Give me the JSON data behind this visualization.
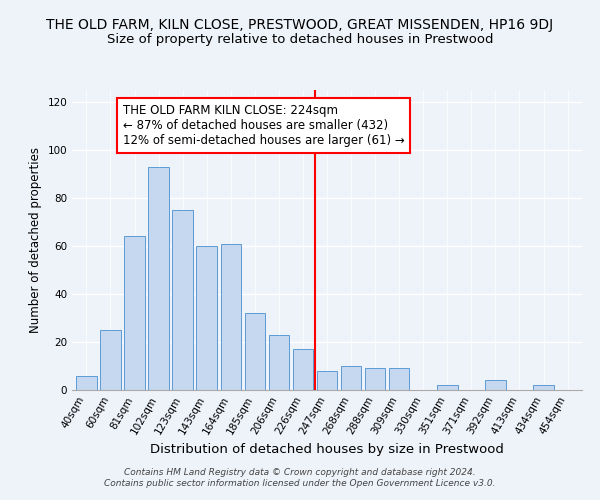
{
  "title": "THE OLD FARM, KILN CLOSE, PRESTWOOD, GREAT MISSENDEN, HP16 9DJ",
  "subtitle": "Size of property relative to detached houses in Prestwood",
  "xlabel": "Distribution of detached houses by size in Prestwood",
  "ylabel": "Number of detached properties",
  "bar_labels": [
    "40sqm",
    "60sqm",
    "81sqm",
    "102sqm",
    "123sqm",
    "143sqm",
    "164sqm",
    "185sqm",
    "206sqm",
    "226sqm",
    "247sqm",
    "268sqm",
    "288sqm",
    "309sqm",
    "330sqm",
    "351sqm",
    "371sqm",
    "392sqm",
    "413sqm",
    "434sqm",
    "454sqm"
  ],
  "bar_values": [
    6,
    25,
    64,
    93,
    75,
    60,
    61,
    32,
    23,
    17,
    8,
    10,
    9,
    9,
    0,
    2,
    0,
    4,
    0,
    2,
    0
  ],
  "bar_color": "#c5d8f0",
  "bar_edge_color": "#5b9bd5",
  "vline_x_index": 9,
  "vline_color": "red",
  "annotation_title": "THE OLD FARM KILN CLOSE: 224sqm",
  "annotation_line1": "← 87% of detached houses are smaller (432)",
  "annotation_line2": "12% of semi-detached houses are larger (61) →",
  "box_color": "#ffffff",
  "box_edge_color": "red",
  "ylim": [
    0,
    125
  ],
  "yticks": [
    0,
    20,
    40,
    60,
    80,
    100,
    120
  ],
  "footer1": "Contains HM Land Registry data © Crown copyright and database right 2024.",
  "footer2": "Contains public sector information licensed under the Open Government Licence v3.0.",
  "background_color": "#eef2f9",
  "title_fontsize": 10,
  "subtitle_fontsize": 9.5,
  "xlabel_fontsize": 9.5,
  "ylabel_fontsize": 8.5,
  "tick_fontsize": 7.5,
  "annotation_fontsize": 8.5,
  "footer_fontsize": 6.5
}
